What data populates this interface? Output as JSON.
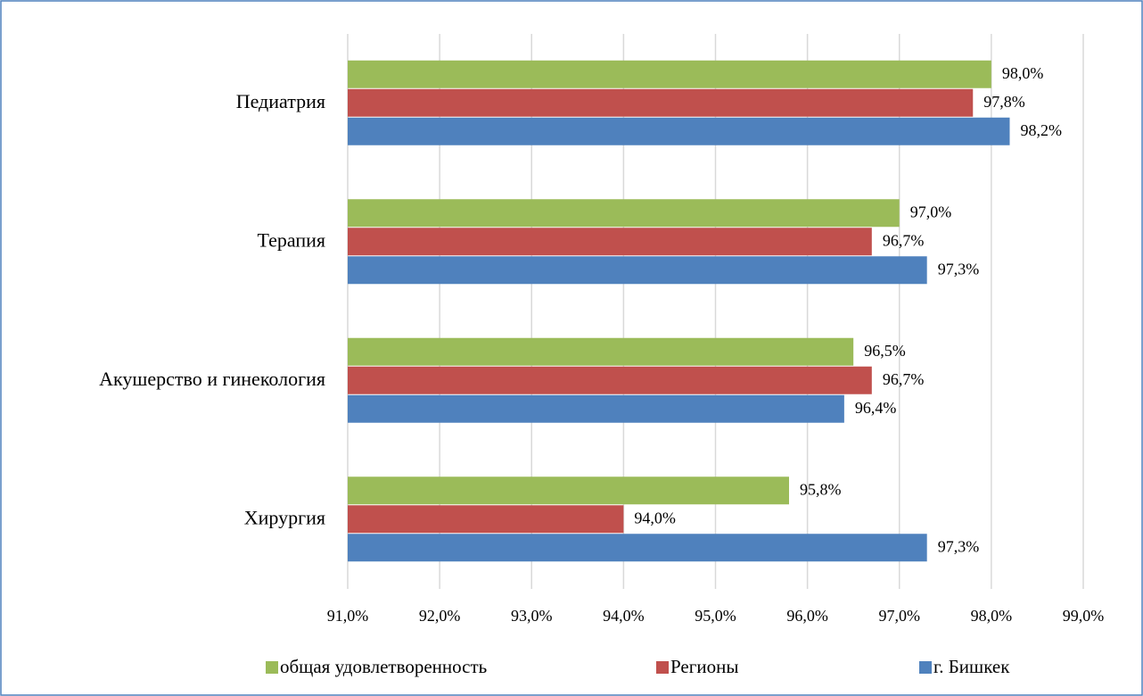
{
  "chart_data": {
    "type": "bar",
    "orientation": "horizontal",
    "categories": [
      "Педиатрия",
      "Терапия",
      "Акушерство и гинекология",
      "Хирургия"
    ],
    "series": [
      {
        "name": "общая удовлетворенность",
        "color": "#9bbb59",
        "values": [
          98.0,
          97.0,
          96.5,
          95.8
        ],
        "value_labels": [
          "98,0%",
          "97,0%",
          "96,5%",
          "95,8%"
        ]
      },
      {
        "name": "Регионы",
        "color": "#c0504d",
        "values": [
          97.8,
          96.7,
          96.7,
          94.0
        ],
        "value_labels": [
          "97,8%",
          "96,7%",
          "96,7%",
          "94,0%"
        ]
      },
      {
        "name": "г. Бишкек",
        "color": "#4f81bd",
        "values": [
          98.2,
          97.3,
          96.4,
          97.3
        ],
        "value_labels": [
          "98,2%",
          "97,3%",
          "96,4%",
          "97,3%"
        ]
      }
    ],
    "xlim": [
      91,
      99
    ],
    "xticks": [
      {
        "value": 91,
        "label": "91,0%"
      },
      {
        "value": 92,
        "label": "92,0%"
      },
      {
        "value": 93,
        "label": "93,0%"
      },
      {
        "value": 94,
        "label": "94,0%"
      },
      {
        "value": 95,
        "label": "95,0%"
      },
      {
        "value": 96,
        "label": "96,0%"
      },
      {
        "value": 97,
        "label": "97,0%"
      },
      {
        "value": 98,
        "label": "98,0%"
      },
      {
        "value": 99,
        "label": "99,0%"
      }
    ],
    "grid": true,
    "legend": "bottom"
  }
}
